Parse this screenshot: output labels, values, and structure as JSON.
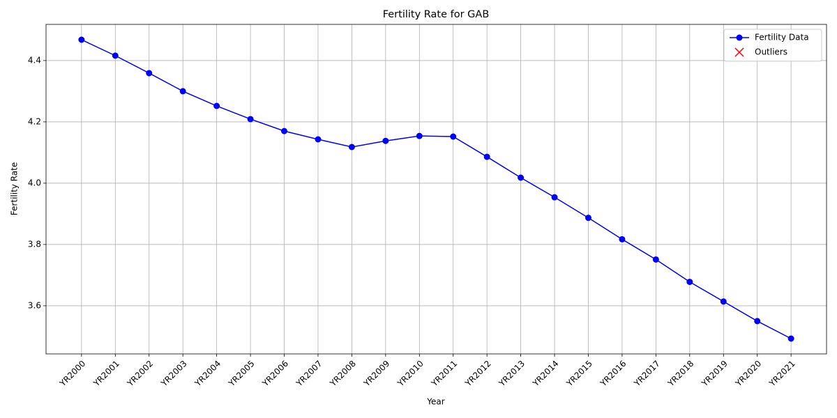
{
  "chart_data": {
    "type": "line",
    "title": "Fertility Rate for GAB",
    "xlabel": "Year",
    "ylabel": "Fertility Rate",
    "categories": [
      "YR2000",
      "YR2001",
      "YR2002",
      "YR2003",
      "YR2004",
      "YR2005",
      "YR2006",
      "YR2007",
      "YR2008",
      "YR2009",
      "YR2010",
      "YR2011",
      "YR2012",
      "YR2013",
      "YR2014",
      "YR2015",
      "YR2016",
      "YR2017",
      "YR2018",
      "YR2019",
      "YR2020",
      "YR2021"
    ],
    "series": [
      {
        "name": "Fertility Data",
        "color": "#0000ff",
        "marker": "o",
        "values": [
          4.468,
          4.416,
          4.359,
          4.3,
          4.252,
          4.209,
          4.17,
          4.143,
          4.118,
          4.138,
          4.154,
          4.152,
          4.086,
          4.018,
          3.954,
          3.887,
          3.817,
          3.751,
          3.678,
          3.614,
          3.55,
          3.493
        ]
      },
      {
        "name": "Outliers",
        "color": "#ff0000",
        "marker": "x",
        "values": [
          null,
          null,
          null,
          null,
          null,
          null,
          null,
          null,
          null,
          null,
          null,
          null,
          null,
          null,
          null,
          null,
          null,
          null,
          null,
          null,
          null,
          null
        ]
      }
    ],
    "ylim": [
      3.443,
      4.518
    ],
    "yticks": [
      3.6,
      3.8,
      {
        "value": 4,
        "label": "4.0"
      },
      4.2,
      4.4
    ],
    "grid": true,
    "legend": "upper right"
  }
}
